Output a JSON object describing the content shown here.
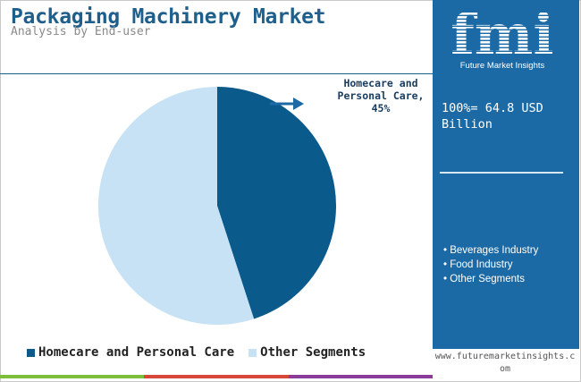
{
  "header": {
    "title": "Packaging Machinery Market",
    "subtitle": "Analysis by End-user"
  },
  "panel": {
    "logo_letters": "fmi",
    "logo_text": "Future Market Insights",
    "total_label": "100%= 64.8 USD Billion",
    "segments": [
      "Beverages Industry",
      "Food Industry",
      "Other Segments"
    ]
  },
  "footer": {
    "website": "www.futuremarketinsights.com"
  },
  "colors": {
    "brand_blue": "#1c6aa5",
    "title_blue": "#1f5f8b",
    "homecare": "#0b5a8c",
    "other": "#c6e2f4",
    "bar_green": "#7bbf3a",
    "bar_red": "#d9473b",
    "bar_purple": "#8a3c9a"
  },
  "chart_data": {
    "type": "pie",
    "title": "Packaging Machinery Market",
    "subtitle": "Analysis by End-user",
    "slices": [
      {
        "name": "Homecare and Personal Care",
        "value": 45,
        "color": "#0b5a8c"
      },
      {
        "name": "Other Segments",
        "value": 55,
        "color": "#c6e2f4"
      }
    ],
    "callout": "Homecare and Personal Care, 45%",
    "legend_position": "bottom"
  }
}
